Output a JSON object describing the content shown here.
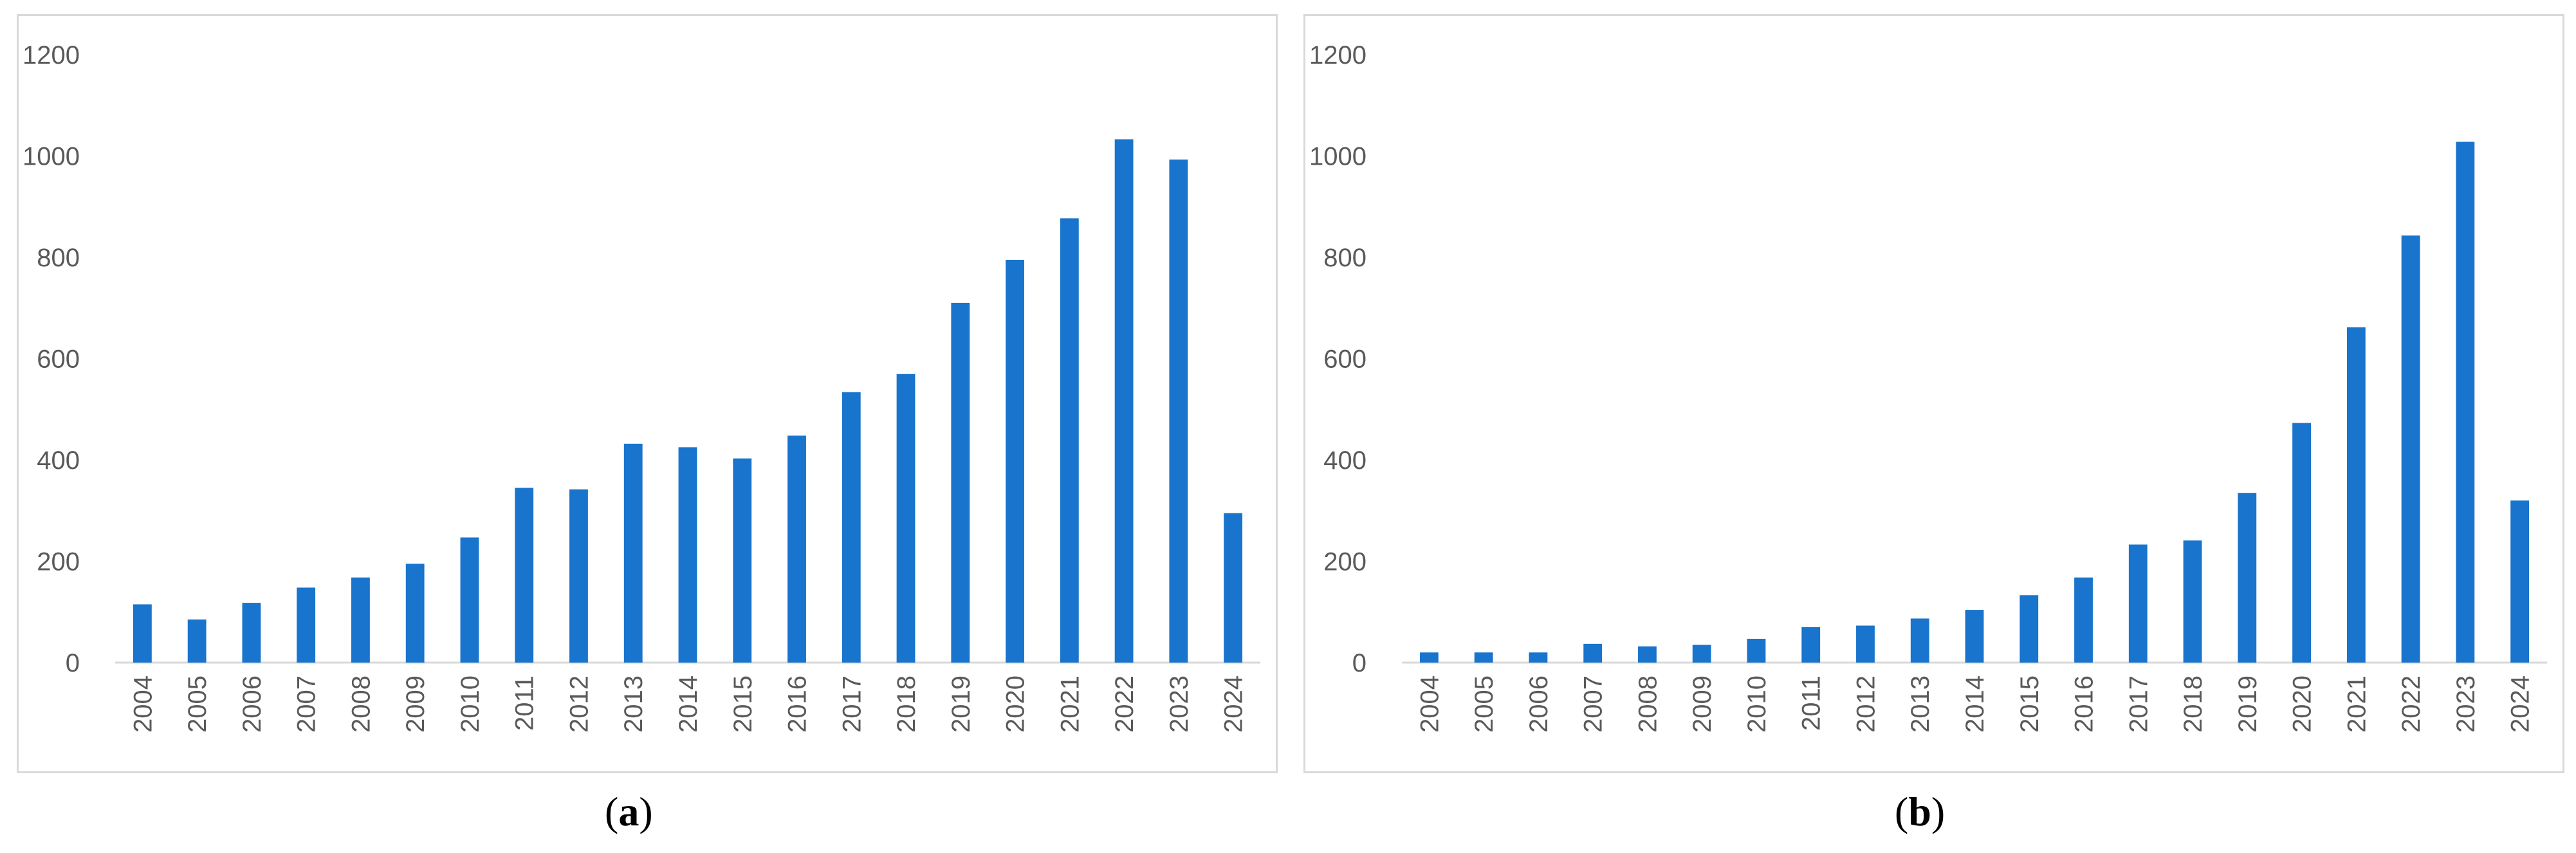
{
  "captions": {
    "a": "a",
    "b": "b"
  },
  "chart_data": [
    {
      "type": "bar",
      "categories": [
        "2004",
        "2005",
        "2006",
        "2007",
        "2008",
        "2009",
        "2010",
        "2011",
        "2012",
        "2013",
        "2014",
        "2015",
        "2016",
        "2017",
        "2018",
        "2019",
        "2020",
        "2021",
        "2022",
        "2023",
        "2024"
      ],
      "values": [
        115,
        85,
        118,
        148,
        168,
        195,
        247,
        345,
        342,
        432,
        425,
        403,
        448,
        534,
        570,
        710,
        795,
        877,
        1033,
        993,
        295
      ],
      "ylim": [
        0,
        1200
      ],
      "yticks": [
        0,
        200,
        400,
        600,
        800,
        1000,
        1200
      ],
      "grid": false,
      "color": "#1874cd"
    },
    {
      "type": "bar",
      "categories": [
        "2004",
        "2005",
        "2006",
        "2007",
        "2008",
        "2009",
        "2010",
        "2011",
        "2012",
        "2013",
        "2014",
        "2015",
        "2016",
        "2017",
        "2018",
        "2019",
        "2020",
        "2021",
        "2022",
        "2023",
        "2024"
      ],
      "values": [
        20,
        20,
        20,
        37,
        32,
        35,
        47,
        70,
        73,
        87,
        104,
        133,
        168,
        233,
        241,
        335,
        473,
        662,
        843,
        1028,
        320
      ],
      "ylim": [
        0,
        1200
      ],
      "yticks": [
        0,
        200,
        400,
        600,
        800,
        1000,
        1200
      ],
      "grid": false,
      "color": "#1874cd"
    }
  ]
}
